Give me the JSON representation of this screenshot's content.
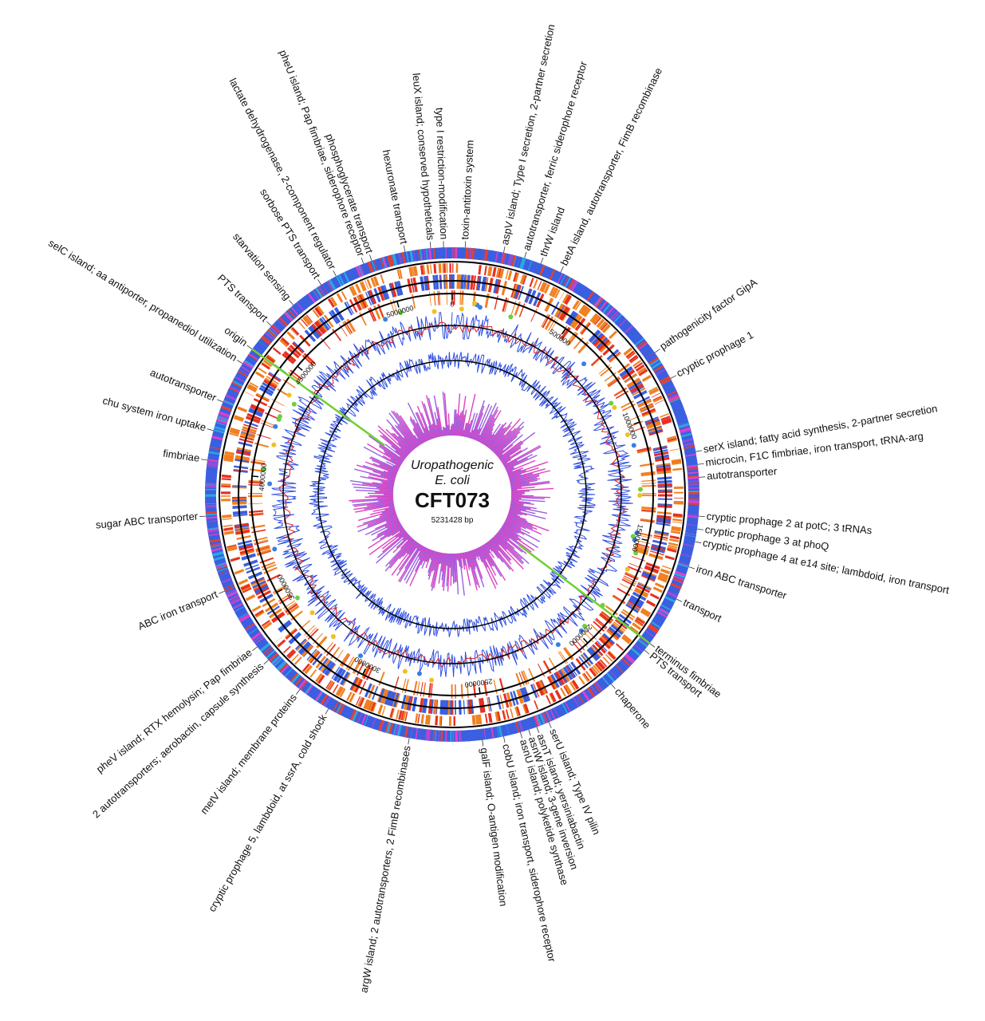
{
  "center": {
    "line1": "Uropathogenic",
    "line2": "E. coli",
    "strain": "CFT073",
    "genome_length": 5231428,
    "unit": "bp"
  },
  "scale": {
    "ticks": [
      0,
      500000,
      1000000,
      1500000,
      2000000,
      2500000,
      3000000,
      3500000,
      4000000,
      4500000,
      5000000
    ]
  },
  "labels": [
    {
      "text": "toxin-antitoxin system"
    },
    {
      "text": "aspV island; Type I secretion, 2-partner secretion"
    },
    {
      "text": "autotransporter, ferric siderophore receptor"
    },
    {
      "text": "thrW island"
    },
    {
      "text": "betA island, autotransporter, FimB recombinase"
    },
    {
      "text": "pathogenicity factor GipA"
    },
    {
      "text": "cryptic prophage 1"
    },
    {
      "text": "serX island; fatty acid synthesis, 2-partner secretion"
    },
    {
      "text": "microcin, F1C fimbriae, iron transport, tRNA-arg"
    },
    {
      "text": "autotransporter"
    },
    {
      "text": "cryptic prophage 2 at potC; 3 tRNAs"
    },
    {
      "text": "cryptic prophage 3 at phoQ"
    },
    {
      "text": "cryptic prophage 4 at e14 site; lambdoid, iron transport"
    },
    {
      "text": "iron ABC transporter"
    },
    {
      "text": "transport"
    },
    {
      "text": "terminus fimbriae"
    },
    {
      "text": "PTS transport"
    },
    {
      "text": "chaperone"
    },
    {
      "text": "serU island; Type IV pilin"
    },
    {
      "text": "asnT island; yersiniabactin"
    },
    {
      "text": "asnW island; 3-gene inversion"
    },
    {
      "text": "asnU island; polyketide synthase"
    },
    {
      "text": "cobU island; iron transport, siderophore receptor"
    },
    {
      "text": "galF island; O-antigen modification"
    },
    {
      "text": "argW island; 2 autotransporters, 2 FimB recombinases"
    },
    {
      "text": "cryptic prophage 5, lambdoid, at ssrA, cold shock"
    },
    {
      "text": "metV island; membrane proteins"
    },
    {
      "text": "2 autotransporters; aerobactin, capsule synthesis"
    },
    {
      "text": "pheV island; RTX hemolysin; Pap fimbriae"
    },
    {
      "text": "ABC iron transport"
    },
    {
      "text": "sugar ABC transporter"
    },
    {
      "text": "fimbriae"
    },
    {
      "text": "chu system iron uptake"
    },
    {
      "text": "autotransporter"
    },
    {
      "text": "selC island; aa antiporter, propanediol utilization"
    },
    {
      "text": "origin"
    },
    {
      "text": "PTS transport"
    },
    {
      "text": "starvation sensing"
    },
    {
      "text": "sorbose PTS transport"
    },
    {
      "text": "lactate dehydrogenase, 2-component regulator"
    },
    {
      "text": "pheU island; Pap fimbriae, siderophore receptor"
    },
    {
      "text": "phosphoglycerate transport"
    },
    {
      "text": "hexuronate transport"
    },
    {
      "text": "leuX island; conserved hypotheticals"
    },
    {
      "text": "type I restriction-modification"
    }
  ]
}
